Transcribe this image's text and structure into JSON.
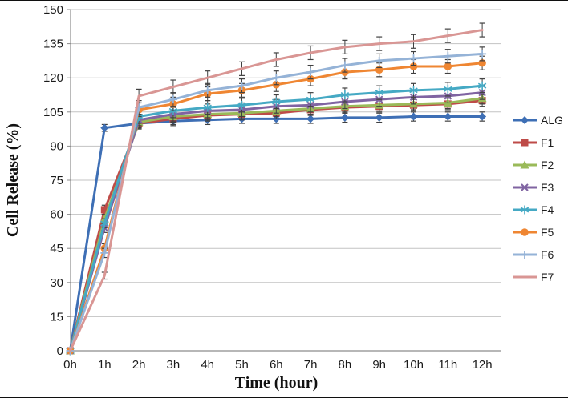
{
  "chart_data": {
    "type": "line",
    "title": "",
    "xlabel": "Time (hour)",
    "ylabel": "Cell Release (%)",
    "categories": [
      "0h",
      "1h",
      "2h",
      "3h",
      "4h",
      "5h",
      "6h",
      "7h",
      "8h",
      "9h",
      "10h",
      "11h",
      "12h"
    ],
    "ylim": [
      0,
      150
    ],
    "yticks": [
      0,
      15,
      30,
      45,
      60,
      75,
      90,
      105,
      120,
      135,
      150
    ],
    "grid": "horizontal-only",
    "legend_position": "right-middle",
    "error_bars": "plus-minus vertical bars with caps, shown from 1h onward",
    "series": [
      {
        "name": "ALG",
        "color": "#3E6FB5",
        "marker": "diamond",
        "values": [
          0,
          98,
          100,
          101,
          101.5,
          102,
          102,
          102,
          102.5,
          102.5,
          103,
          103,
          103
        ],
        "errors": [
          0,
          1.5,
          2,
          2,
          2,
          2,
          2,
          2,
          2,
          2,
          2,
          2,
          2
        ]
      },
      {
        "name": "F1",
        "color": "#BE4B48",
        "marker": "square",
        "values": [
          0,
          62,
          100,
          102,
          103.5,
          104,
          104.5,
          106,
          107,
          107.5,
          108,
          108.5,
          110
        ],
        "errors": [
          0,
          2,
          2.5,
          2.5,
          2.5,
          2.5,
          2.5,
          2.5,
          2.5,
          2.5,
          2.5,
          2.5,
          2.5
        ]
      },
      {
        "name": "F2",
        "color": "#9ABA59",
        "marker": "triangle",
        "values": [
          0,
          58,
          100.5,
          103,
          104,
          104.5,
          105.5,
          106.5,
          107.5,
          108,
          108.5,
          109,
          111
        ],
        "errors": [
          0,
          2,
          2.5,
          2.5,
          2.5,
          2.5,
          2.5,
          2.5,
          2.5,
          2.5,
          2.5,
          2.5,
          2.5
        ]
      },
      {
        "name": "F3",
        "color": "#8064A2",
        "marker": "x",
        "values": [
          0,
          54,
          101.5,
          104,
          105.5,
          106,
          107.5,
          108,
          109.5,
          110.5,
          111.5,
          112,
          113.5
        ],
        "errors": [
          0,
          2,
          2.5,
          3,
          3,
          3,
          3,
          3,
          3,
          3,
          3,
          3,
          3
        ]
      },
      {
        "name": "F4",
        "color": "#45A9C4",
        "marker": "asterisk",
        "values": [
          0,
          56,
          103,
          105.5,
          107,
          108,
          109.5,
          110.5,
          112.5,
          113.5,
          114.5,
          115,
          116.5
        ],
        "errors": [
          0,
          2,
          3,
          3,
          3,
          3,
          3,
          3,
          3,
          3,
          3,
          3,
          3
        ]
      },
      {
        "name": "F5",
        "color": "#EF8632",
        "marker": "circle",
        "values": [
          0,
          45,
          106,
          108.5,
          113,
          114.5,
          117,
          119.5,
          122.5,
          123.5,
          125,
          125,
          126.5
        ],
        "errors": [
          0,
          2,
          3,
          3,
          3,
          3,
          3,
          3,
          3,
          3,
          3,
          3,
          3
        ]
      },
      {
        "name": "F6",
        "color": "#95B3D7",
        "marker": "plus",
        "values": [
          0,
          43,
          107,
          110.5,
          114.5,
          116.5,
          120,
          122.5,
          125.5,
          127.5,
          128.5,
          129.5,
          130.5
        ],
        "errors": [
          0,
          2,
          3,
          3,
          3,
          3,
          3,
          3,
          3,
          3,
          3,
          3,
          3
        ]
      },
      {
        "name": "F7",
        "color": "#D99694",
        "marker": "none",
        "values": [
          0,
          33,
          112,
          116,
          120,
          124,
          128,
          131,
          133.5,
          135,
          136,
          138.5,
          141
        ],
        "errors": [
          0,
          1.5,
          3,
          3,
          3,
          3,
          3,
          3,
          3,
          3,
          3,
          3,
          3
        ]
      }
    ]
  },
  "style": {
    "background": "#FFFFFF",
    "frame_color": "#101010",
    "grid_color": "#C3C3C3",
    "axis_color": "#8C8C8C",
    "error_bar_color": "#404040",
    "tick_label_color": "#1A1A1A",
    "legend_text_color": "#1F1F1F"
  }
}
